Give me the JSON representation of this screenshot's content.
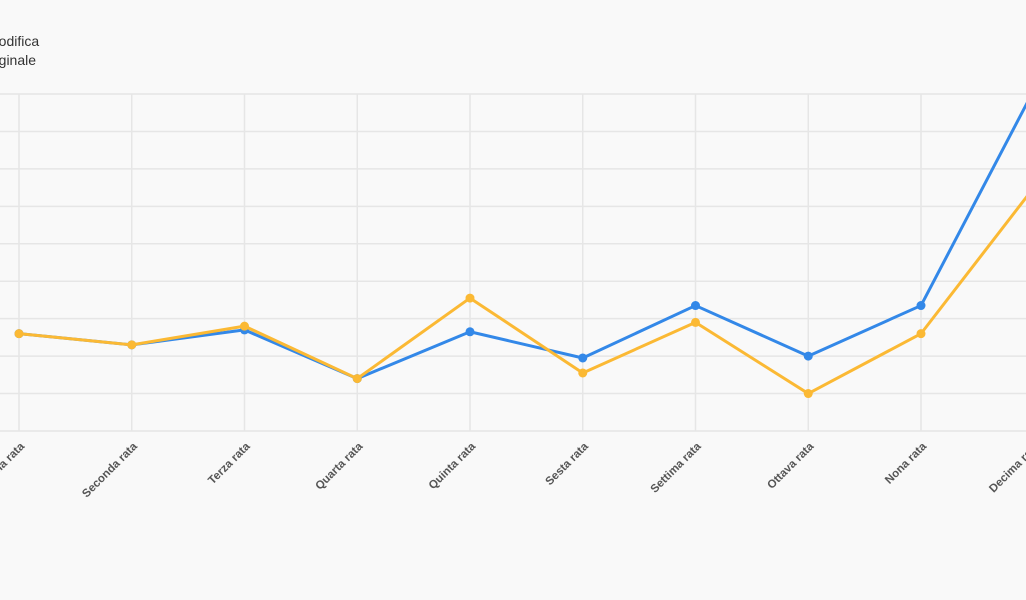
{
  "chart_data": {
    "type": "line",
    "legend": [
      "Modifica",
      "Originale"
    ],
    "categories": [
      "Prima rata",
      "Seconda rata",
      "Terza rata",
      "Quarta rata",
      "Quinta rata",
      "Sesta rata",
      "Settima rata",
      "Ottava rata",
      "Nona rata",
      "Decima rata"
    ],
    "series": [
      {
        "name": "Modifica",
        "color": "#3388e8",
        "values": [
          2.6,
          2.3,
          2.7,
          1.4,
          2.65,
          1.95,
          3.35,
          2.0,
          3.35,
          9.1
        ]
      },
      {
        "name": "Originale",
        "color": "#fbb934",
        "values": [
          2.6,
          2.3,
          2.8,
          1.4,
          3.55,
          1.55,
          2.9,
          1.0,
          2.6,
          6.5
        ]
      }
    ],
    "ylim": [
      0,
      9
    ],
    "grid": true,
    "legend_position": "top-left"
  }
}
